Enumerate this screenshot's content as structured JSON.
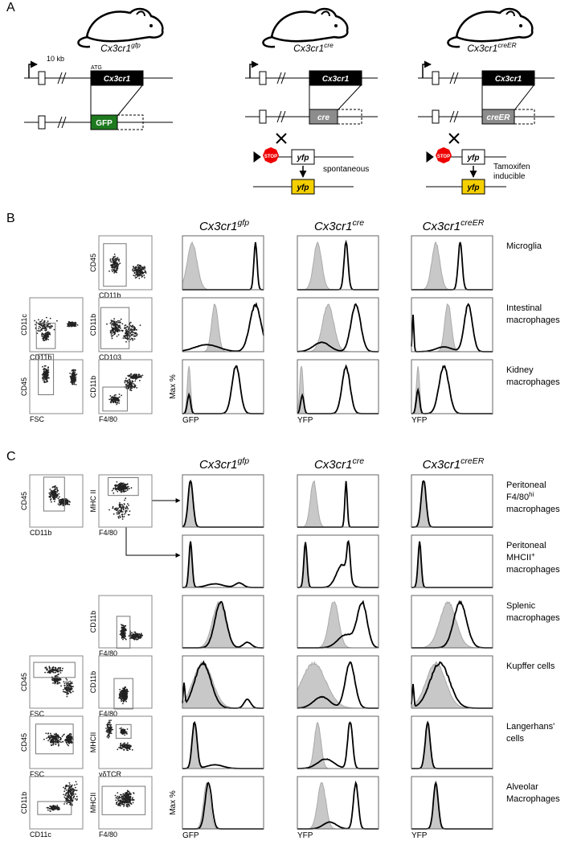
{
  "panel_labels": [
    "A",
    "B",
    "C"
  ],
  "panel_a": {
    "mice": [
      {
        "gene": "Cx3cr1",
        "allele": "gfp"
      },
      {
        "gene": "Cx3cr1",
        "allele": "cre"
      },
      {
        "gene": "Cx3cr1",
        "allele": "creER"
      }
    ],
    "scale": "10 kb",
    "atg": "ATG",
    "gene_box": "Cx3cr1",
    "inserts": [
      "GFP",
      "cre",
      "creER"
    ],
    "stop": "STOP",
    "reporter": "yfp",
    "notes": [
      "spontaneous",
      [
        "Tamoxifen",
        "inducible"
      ]
    ]
  },
  "panel_b": {
    "columns": [
      {
        "gene": "Cx3cr1",
        "allele": "gfp"
      },
      {
        "gene": "Cx3cr1",
        "allele": "cre"
      },
      {
        "gene": "Cx3cr1",
        "allele": "creER"
      }
    ],
    "y_label": "Max %",
    "x_labels": [
      "GFP",
      "YFP",
      "YFP"
    ],
    "rows": [
      {
        "label": [
          "Microglia"
        ],
        "plots": [
          {
            "x": "CD11b",
            "y": "CD45"
          }
        ]
      },
      {
        "label": [
          "Intestinal",
          "macrophages"
        ],
        "plots": [
          {
            "x": "CD11b",
            "y": "CD11c"
          },
          {
            "x": "CD103",
            "y": "CD11b"
          }
        ]
      },
      {
        "label": [
          "Kidney",
          "macrophages"
        ],
        "plots": [
          {
            "x": "FSC",
            "y": "CD45"
          },
          {
            "x": "F4/80",
            "y": "CD11b"
          }
        ]
      }
    ]
  },
  "panel_c": {
    "columns": [
      {
        "gene": "Cx3cr1",
        "allele": "gfp"
      },
      {
        "gene": "Cx3cr1",
        "allele": "cre"
      },
      {
        "gene": "Cx3cr1",
        "allele": "creER"
      }
    ],
    "y_label": "Max %",
    "x_labels": [
      "GFP",
      "YFP",
      "YFP"
    ],
    "rows": [
      {
        "label": [
          "Peritoneal",
          {
            "text": "F4/80",
            "sup": "hi"
          },
          "macrophages"
        ],
        "plots": [
          {
            "x": "CD11b",
            "y": "CD45"
          },
          {
            "x": "F4/80",
            "y": "MHC II"
          }
        ]
      },
      {
        "label": [
          "Peritoneal",
          {
            "text": "MHCII",
            "sup": "+"
          },
          "macrophages"
        ],
        "plots": []
      },
      {
        "label": [
          "Splenic",
          "macrophages"
        ],
        "plots": [
          {
            "x": "F4/80",
            "y": "CD11b"
          }
        ]
      },
      {
        "label": [
          "Kupffer cells"
        ],
        "plots": [
          {
            "x": "FSC",
            "y": "CD45"
          },
          {
            "x": "F4/80",
            "y": "CD11b"
          }
        ]
      },
      {
        "label": [
          "Langerhans'",
          "cells"
        ],
        "plots": [
          {
            "x": "FSC",
            "y": "CD45"
          },
          {
            "x": "γδTCR",
            "y": "MHCII"
          }
        ]
      },
      {
        "label": [
          "Alveolar",
          "Macrophages"
        ],
        "plots": [
          {
            "x": "CD11c",
            "y": "CD11b"
          },
          {
            "x": "F4/80",
            "y": "MHCII"
          }
        ]
      }
    ]
  }
}
